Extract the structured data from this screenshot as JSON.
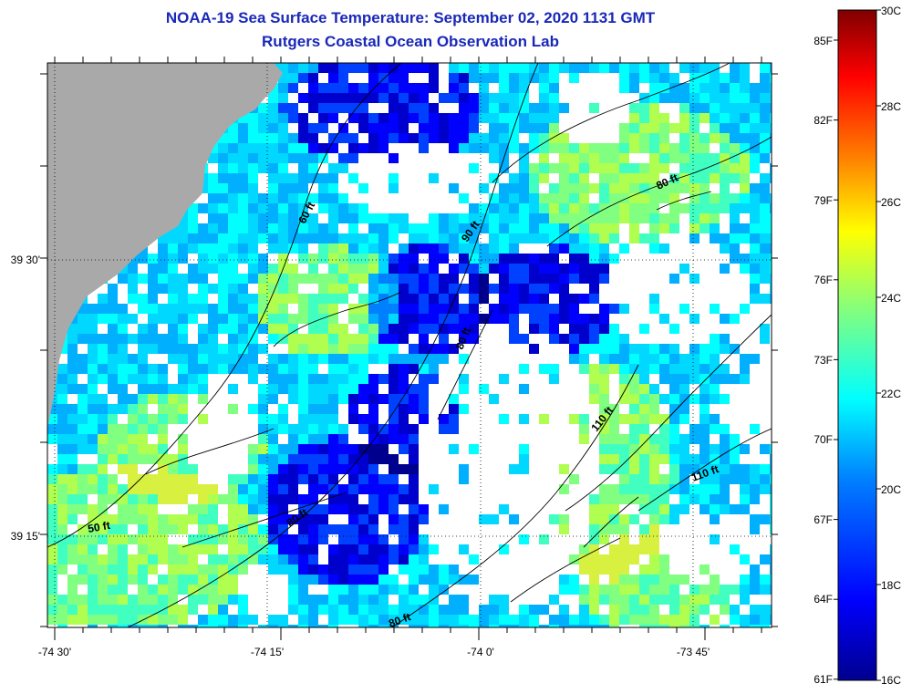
{
  "header": {
    "title": "NOAA-19 Sea Surface Temperature:  September 02, 2020 1131 GMT",
    "subtitle": "Rutgers Coastal Ocean Observation Lab"
  },
  "axes": {
    "lon_ticks": [
      "-74 30'",
      "-74 15'",
      "-74 0'",
      "-73 45'"
    ],
    "lat_ticks": [
      "39 30'",
      "39 15'"
    ]
  },
  "contour_labels": [
    "60 ft",
    "90 ft",
    "80 ft",
    "80 ft",
    "110 ft",
    "110 ft",
    "50 ft",
    "80 ft",
    "80 ft"
  ],
  "colorbar": {
    "celsius_labels": [
      "30C",
      "28C",
      "26C",
      "24C",
      "22C",
      "20C",
      "18C",
      "16C"
    ],
    "fahrenheit_labels": [
      "85F",
      "82F",
      "79F",
      "76F",
      "73F",
      "70F",
      "67F",
      "64F",
      "61F"
    ],
    "range_c": [
      16,
      30
    ],
    "colors": [
      "#00008f",
      "#0000ff",
      "#0080ff",
      "#00ffff",
      "#80ff80",
      "#ffff00",
      "#ff8000",
      "#ff0000",
      "#800000"
    ]
  },
  "map": {
    "land_color": "#a9a9a9",
    "nodata_color": "#ffffff"
  }
}
